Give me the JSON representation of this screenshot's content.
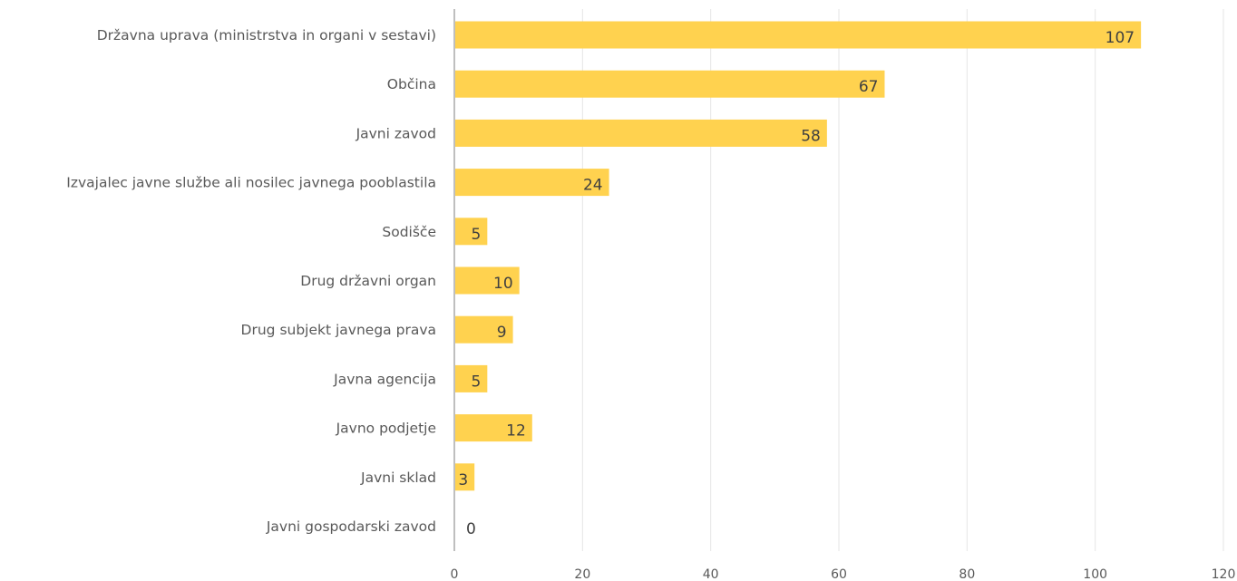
{
  "chart_data": {
    "type": "bar",
    "orientation": "horizontal",
    "categories": [
      "Državna uprava (ministrstva in organi v sestavi)",
      "Občina",
      "Javni zavod",
      "Izvajalec javne službe ali nosilec javnega pooblastila",
      "Sodišče",
      "Drug državni organ",
      "Drug subjekt javnega prava",
      "Javna agencija",
      "Javno podjetje",
      "Javni sklad",
      "Javni gospodarski zavod"
    ],
    "values": [
      107,
      67,
      58,
      24,
      5,
      10,
      9,
      5,
      12,
      3,
      0
    ],
    "xlim": [
      0,
      120
    ],
    "xticks": [
      "0",
      "20",
      "40",
      "60",
      "80",
      "100",
      "120"
    ],
    "grid": true,
    "legend": "none",
    "bar_color": "#FFD24F",
    "grid_color": "#E6E6E6",
    "axis_color": "#BFBFBF"
  }
}
